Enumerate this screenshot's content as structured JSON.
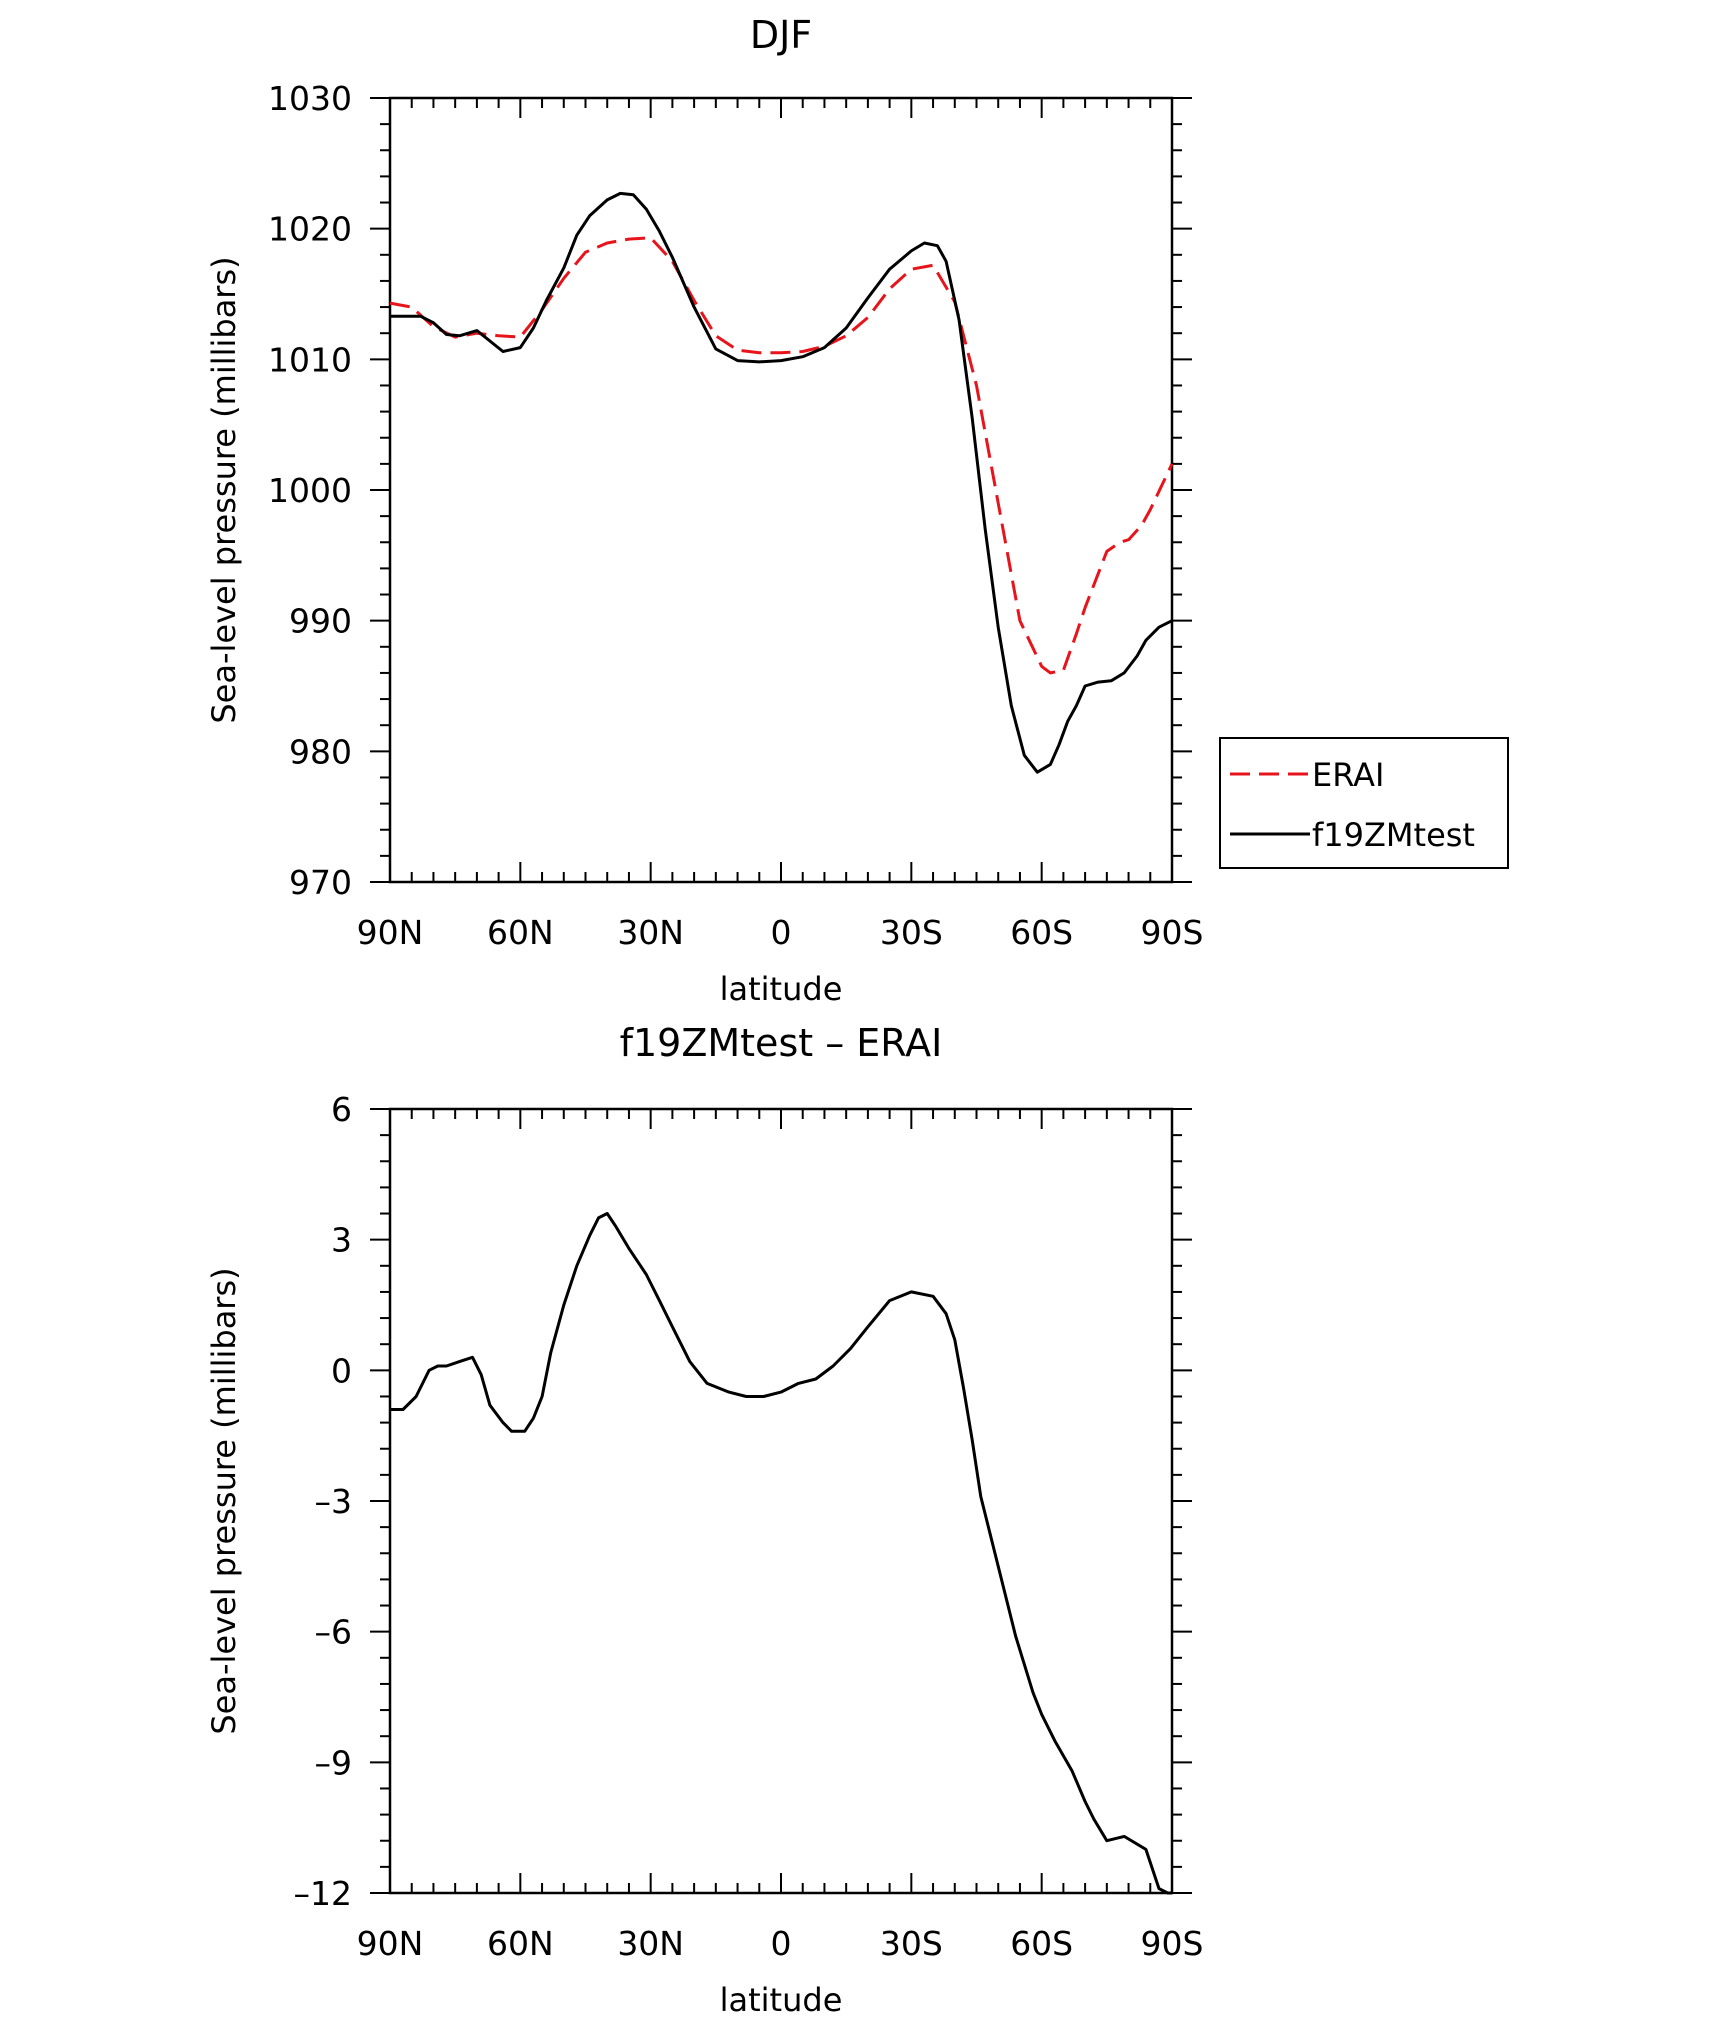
{
  "chart_data": [
    {
      "type": "line",
      "title": "DJF",
      "xlabel": "latitude",
      "ylabel": "Sea-level pressure (millibars)",
      "xlim": [
        90,
        -90
      ],
      "ylim": [
        970,
        1030
      ],
      "xticks": [
        {
          "value": 90,
          "label": "90N"
        },
        {
          "value": 60,
          "label": "60N"
        },
        {
          "value": 30,
          "label": "30N"
        },
        {
          "value": 0,
          "label": "0"
        },
        {
          "value": -30,
          "label": "30S"
        },
        {
          "value": -60,
          "label": "60S"
        },
        {
          "value": -90,
          "label": "90S"
        }
      ],
      "yticks": [
        {
          "value": 1030,
          "label": "1030"
        },
        {
          "value": 1020,
          "label": "1020"
        },
        {
          "value": 1010,
          "label": "1010"
        },
        {
          "value": 1000,
          "label": "1000"
        },
        {
          "value": 990,
          "label": "990"
        },
        {
          "value": 980,
          "label": "980"
        },
        {
          "value": 970,
          "label": "970"
        }
      ],
      "legend_position": "right",
      "series": [
        {
          "name": "ERAI",
          "color": "#e8141c",
          "dash": "dashed",
          "x": [
            90,
            85,
            80,
            75,
            70,
            65,
            60,
            55,
            50,
            45,
            40,
            35,
            30,
            25,
            20,
            15,
            10,
            5,
            0,
            -5,
            -10,
            -15,
            -20,
            -25,
            -30,
            -35,
            -40,
            -45,
            -50,
            -55,
            -60,
            -62,
            -65,
            -68,
            -70,
            -75,
            -78,
            -80,
            -83,
            -85,
            -90
          ],
          "values": [
            1014.3,
            1014.0,
            1012.5,
            1011.7,
            1012.0,
            1011.8,
            1011.7,
            1013.8,
            1016.2,
            1018.2,
            1018.9,
            1019.2,
            1019.3,
            1017.5,
            1014.5,
            1011.8,
            1010.7,
            1010.5,
            1010.5,
            1010.6,
            1011.0,
            1011.8,
            1013.2,
            1015.4,
            1016.9,
            1017.2,
            1014.4,
            1008.0,
            999.0,
            990.0,
            986.5,
            986.0,
            986.2,
            989.0,
            991.0,
            995.3,
            996.0,
            996.2,
            997.3,
            998.5,
            1002.0
          ]
        },
        {
          "name": "f19ZMtest",
          "color": "#000000",
          "dash": "solid",
          "x": [
            90,
            86,
            83,
            80,
            77,
            74,
            70,
            67,
            64,
            60,
            57,
            54,
            50,
            47,
            44,
            40,
            37,
            34,
            31,
            28,
            25,
            20,
            15,
            10,
            5,
            0,
            -5,
            -10,
            -15,
            -20,
            -25,
            -30,
            -33,
            -36,
            -38,
            -41,
            -44,
            -47,
            -50,
            -53,
            -56,
            -59,
            -62,
            -64,
            -66,
            -68,
            -70,
            -73,
            -76,
            -79,
            -82,
            -84,
            -87,
            -90
          ],
          "values": [
            1013.3,
            1013.3,
            1013.3,
            1012.8,
            1011.9,
            1011.8,
            1012.2,
            1011.4,
            1010.6,
            1010.9,
            1012.4,
            1014.5,
            1017.0,
            1019.5,
            1021.0,
            1022.2,
            1022.7,
            1022.6,
            1021.5,
            1019.8,
            1017.8,
            1014.0,
            1010.8,
            1009.9,
            1009.8,
            1009.9,
            1010.2,
            1010.9,
            1012.4,
            1014.7,
            1016.9,
            1018.3,
            1018.9,
            1018.7,
            1017.5,
            1013.0,
            1005.5,
            997.0,
            989.5,
            983.5,
            979.7,
            978.4,
            979.0,
            980.5,
            982.3,
            983.5,
            985.0,
            985.3,
            985.4,
            986.0,
            987.3,
            988.5,
            989.5,
            990.0
          ]
        }
      ]
    },
    {
      "type": "line",
      "title": "f19ZMtest – ERAI",
      "xlabel": "latitude",
      "ylabel": "Sea-level pressure (millibars)",
      "xlim": [
        90,
        -90
      ],
      "ylim": [
        -12,
        6
      ],
      "xticks": [
        {
          "value": 90,
          "label": "90N"
        },
        {
          "value": 60,
          "label": "60N"
        },
        {
          "value": 30,
          "label": "30N"
        },
        {
          "value": 0,
          "label": "0"
        },
        {
          "value": -30,
          "label": "30S"
        },
        {
          "value": -60,
          "label": "60S"
        },
        {
          "value": -90,
          "label": "90S"
        }
      ],
      "yticks": [
        {
          "value": 6,
          "label": "6"
        },
        {
          "value": 3,
          "label": "3"
        },
        {
          "value": 0,
          "label": "0"
        },
        {
          "value": -3,
          "label": "–3"
        },
        {
          "value": -6,
          "label": "–6"
        },
        {
          "value": -9,
          "label": "–9"
        },
        {
          "value": -12,
          "label": "–12"
        }
      ],
      "series": [
        {
          "color": "#000000",
          "dash": "solid",
          "x": [
            90,
            87,
            84,
            81,
            79,
            77,
            74,
            71,
            69,
            67,
            64,
            62,
            59,
            57,
            55,
            53,
            50,
            47,
            44,
            42,
            40,
            38,
            35,
            33,
            31,
            28,
            25,
            21,
            17,
            12,
            8,
            4,
            0,
            -4,
            -8,
            -12,
            -16,
            -20,
            -25,
            -30,
            -35,
            -38,
            -40,
            -42,
            -44,
            -46,
            -50,
            -54,
            -58,
            -60,
            -63,
            -67,
            -70,
            -72,
            -75,
            -79,
            -84,
            -87,
            -89,
            -90
          ],
          "values": [
            -0.9,
            -0.9,
            -0.6,
            0.0,
            0.1,
            0.1,
            0.2,
            0.3,
            -0.1,
            -0.8,
            -1.2,
            -1.4,
            -1.4,
            -1.1,
            -0.6,
            0.4,
            1.5,
            2.4,
            3.1,
            3.5,
            3.6,
            3.3,
            2.8,
            2.5,
            2.2,
            1.6,
            1.0,
            0.2,
            -0.3,
            -0.5,
            -0.6,
            -0.6,
            -0.5,
            -0.3,
            -0.2,
            0.1,
            0.5,
            1.0,
            1.6,
            1.8,
            1.7,
            1.3,
            0.7,
            -0.4,
            -1.6,
            -2.9,
            -4.5,
            -6.1,
            -7.4,
            -7.9,
            -8.5,
            -9.2,
            -9.9,
            -10.3,
            -10.8,
            -10.7,
            -11.0,
            -11.9,
            -12.0,
            -12.0
          ]
        }
      ]
    }
  ]
}
